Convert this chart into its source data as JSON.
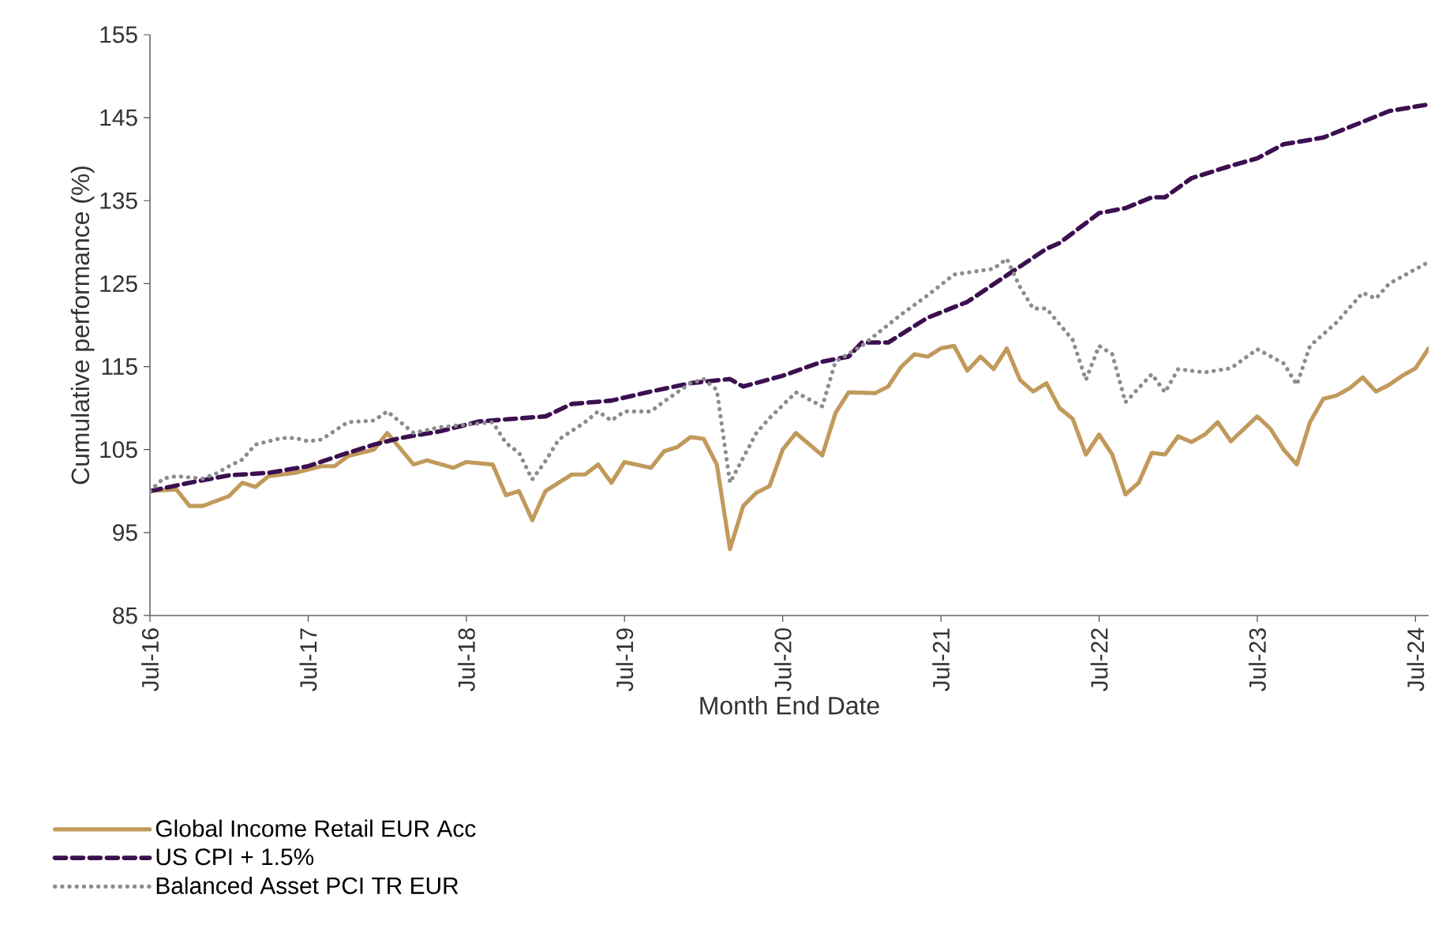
{
  "chart_data": {
    "type": "line",
    "xlabel": "Month End Date",
    "ylabel": "Cumulative performance (%)",
    "xlim": [
      "2016-07",
      "2024-08"
    ],
    "ylim": [
      85,
      155
    ],
    "xticks": [
      {
        "value": "2016-07",
        "label": "Jul-16"
      },
      {
        "value": "2017-07",
        "label": "Jul-17"
      },
      {
        "value": "2018-07",
        "label": "Jul-18"
      },
      {
        "value": "2019-07",
        "label": "Jul-19"
      },
      {
        "value": "2020-07",
        "label": "Jul-20"
      },
      {
        "value": "2021-07",
        "label": "Jul-21"
      },
      {
        "value": "2022-07",
        "label": "Jul-22"
      },
      {
        "value": "2023-07",
        "label": "Jul-23"
      },
      {
        "value": "2024-07",
        "label": "Jul-24"
      }
    ],
    "yticks": [
      85,
      95,
      105,
      115,
      125,
      135,
      145,
      155
    ],
    "grid": false,
    "legend": "bottom",
    "marker": "none",
    "series": [
      {
        "name": "Global Income Retail EUR Acc",
        "color": "#c19a5b",
        "line_style": "solid",
        "x": [
          "2016-07",
          "2016-09",
          "2016-10",
          "2016-11",
          "2017-01",
          "2017-02",
          "2017-03",
          "2017-04",
          "2017-06",
          "2017-08",
          "2017-09",
          "2017-10",
          "2017-12",
          "2018-01",
          "2018-03",
          "2018-04",
          "2018-06",
          "2018-07",
          "2018-09",
          "2018-10",
          "2018-11",
          "2018-12",
          "2019-01",
          "2019-03",
          "2019-04",
          "2019-05",
          "2019-06",
          "2019-07",
          "2019-09",
          "2019-10",
          "2019-11",
          "2019-12",
          "2020-01",
          "2020-02",
          "2020-03",
          "2020-04",
          "2020-05",
          "2020-06",
          "2020-07",
          "2020-08",
          "2020-10",
          "2020-11",
          "2020-12",
          "2021-02",
          "2021-03",
          "2021-04",
          "2021-05",
          "2021-06",
          "2021-07",
          "2021-08",
          "2021-09",
          "2021-10",
          "2021-11",
          "2021-12",
          "2022-01",
          "2022-02",
          "2022-03",
          "2022-04",
          "2022-05",
          "2022-06",
          "2022-07",
          "2022-08",
          "2022-09",
          "2022-10",
          "2022-11",
          "2022-12",
          "2023-01",
          "2023-02",
          "2023-03",
          "2023-04",
          "2023-05",
          "2023-07",
          "2023-08",
          "2023-09",
          "2023-10",
          "2023-11",
          "2023-12",
          "2024-01",
          "2024-02",
          "2024-03",
          "2024-04",
          "2024-05",
          "2024-06",
          "2024-07",
          "2024-08"
        ],
        "values": [
          100,
          100.2,
          98.2,
          98.2,
          99.4,
          101,
          100.5,
          101.8,
          102.2,
          103,
          103,
          104.2,
          105,
          107,
          103.2,
          103.7,
          102.8,
          103.5,
          103.2,
          99.5,
          100,
          96.5,
          100,
          102,
          102,
          103.2,
          101,
          103.5,
          102.8,
          104.8,
          105.3,
          106.5,
          106.3,
          103.2,
          93,
          98.2,
          99.8,
          100.6,
          105,
          107,
          104.3,
          109.4,
          111.9,
          111.8,
          112.6,
          115,
          116.5,
          116.2,
          117.2,
          117.5,
          114.5,
          116.2,
          114.7,
          117.2,
          113.4,
          112,
          113,
          110,
          108.7,
          104.4,
          106.8,
          104.4,
          99.6,
          101,
          104.6,
          104.4,
          106.6,
          105.9,
          106.8,
          108.3,
          106,
          109,
          107.5,
          105,
          103.2,
          108.3,
          111.1,
          111.5,
          112.4,
          113.7,
          112,
          112.8,
          113.9,
          114.8,
          117.2
        ]
      },
      {
        "name": "US CPI + 1.5%",
        "color": "#3b0f50",
        "line_style": "dashed",
        "x": [
          "2016-07",
          "2016-10",
          "2017-01",
          "2017-04",
          "2017-07",
          "2017-10",
          "2017-12",
          "2018-02",
          "2018-05",
          "2018-08",
          "2019-01",
          "2019-03",
          "2019-06",
          "2019-09",
          "2019-12",
          "2020-03",
          "2020-04",
          "2020-07",
          "2020-10",
          "2020-12",
          "2021-01",
          "2021-03",
          "2021-06",
          "2021-09",
          "2021-12",
          "2022-03",
          "2022-04",
          "2022-07",
          "2022-09",
          "2022-11",
          "2022-12",
          "2023-02",
          "2023-05",
          "2023-07",
          "2023-09",
          "2023-12",
          "2024-03",
          "2024-05",
          "2024-08"
        ],
        "values": [
          100,
          101,
          101.9,
          102.2,
          103,
          104.6,
          105.6,
          106.4,
          107.2,
          108.4,
          109,
          110.5,
          110.9,
          112,
          113,
          113.5,
          112.6,
          113.9,
          115.6,
          116.2,
          117.9,
          117.9,
          120.9,
          122.8,
          126,
          129.2,
          129.9,
          133.5,
          134.1,
          135.4,
          135.4,
          137.7,
          139.2,
          140.1,
          141.8,
          142.6,
          144.5,
          145.8,
          146.6
        ]
      },
      {
        "name": "Balanced Asset PCI TR EUR",
        "color": "#8c8c8c",
        "line_style": "dotted",
        "x": [
          "2016-07",
          "2016-08",
          "2016-09",
          "2016-11",
          "2016-12",
          "2017-01",
          "2017-02",
          "2017-03",
          "2017-05",
          "2017-06",
          "2017-07",
          "2017-08",
          "2017-10",
          "2017-12",
          "2018-01",
          "2018-02",
          "2018-03",
          "2018-05",
          "2018-07",
          "2018-09",
          "2018-10",
          "2018-11",
          "2018-12",
          "2019-01",
          "2019-02",
          "2019-04",
          "2019-05",
          "2019-06",
          "2019-07",
          "2019-09",
          "2019-10",
          "2019-12",
          "2020-01",
          "2020-02",
          "2020-03",
          "2020-05",
          "2020-06",
          "2020-08",
          "2020-10",
          "2020-11",
          "2021-01",
          "2021-04",
          "2021-06",
          "2021-08",
          "2021-11",
          "2021-12",
          "2022-01",
          "2022-02",
          "2022-03",
          "2022-05",
          "2022-06",
          "2022-07",
          "2022-08",
          "2022-09",
          "2022-11",
          "2022-12",
          "2023-01",
          "2023-03",
          "2023-05",
          "2023-07",
          "2023-09",
          "2023-10",
          "2023-11",
          "2024-01",
          "2024-03",
          "2024-04",
          "2024-05",
          "2024-08"
        ],
        "values": [
          100,
          101.5,
          101.8,
          101.5,
          102.1,
          103,
          103.8,
          105.6,
          106.4,
          106.4,
          106,
          106.2,
          108.3,
          108.5,
          109.6,
          108.3,
          107,
          107.7,
          108,
          108.3,
          105.8,
          104.6,
          101.4,
          103.6,
          106.2,
          108.3,
          109.6,
          108.5,
          109.6,
          109.6,
          110.8,
          113,
          113.5,
          112.2,
          101,
          107,
          108.8,
          111.9,
          110.2,
          115.6,
          117.5,
          121.3,
          123.6,
          126.1,
          126.8,
          128,
          124.6,
          122,
          122,
          118.2,
          113.4,
          117.5,
          116.5,
          110.7,
          114.1,
          111.9,
          114.7,
          114.3,
          114.8,
          117.1,
          115.4,
          112.8,
          117.5,
          120.3,
          123.9,
          123.2,
          125,
          127.6
        ]
      }
    ]
  }
}
